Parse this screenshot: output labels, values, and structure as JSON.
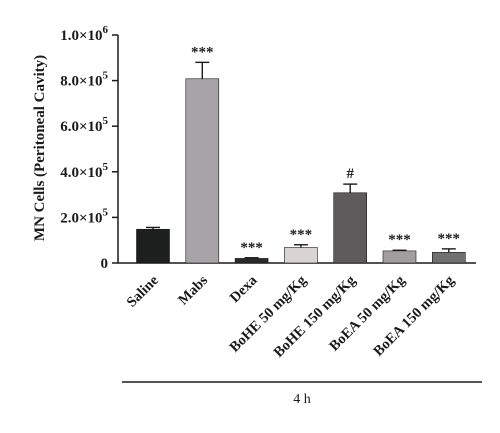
{
  "chart_data": {
    "type": "bar",
    "title": "",
    "xlabel": "",
    "ylabel": "MN Cells (Peritoneal Cavity)",
    "ylim": [
      0,
      1000000
    ],
    "yticks": [
      {
        "value": 0,
        "label": "0"
      },
      {
        "value": 200000,
        "label": "2.0×10",
        "exp": "5"
      },
      {
        "value": 400000,
        "label": "4.0×10",
        "exp": "5"
      },
      {
        "value": 600000,
        "label": "6.0×10",
        "exp": "5"
      },
      {
        "value": 800000,
        "label": "8.0×10",
        "exp": "5"
      },
      {
        "value": 1000000,
        "label": "1.0×10",
        "exp": "6"
      }
    ],
    "categories": [
      "Saline",
      "Mabs",
      "Dexa",
      "BoHE 50 mg/Kg",
      "BoHE 150 mg/Kg",
      "BoEA 50 mg/Kg",
      "BoEA 150 mg/Kg"
    ],
    "values": [
      148000,
      808000,
      20000,
      68000,
      308000,
      53000,
      47000
    ],
    "errors": [
      8000,
      72000,
      3000,
      12000,
      38000,
      3000,
      15000
    ],
    "significance": [
      "",
      "***",
      "***",
      "***",
      "#",
      "***",
      "***"
    ],
    "bar_colors": [
      "#1c1f1d",
      "#a7a3a6",
      "#2a2a2a",
      "#d9d4d3",
      "#5f5a5c",
      "#a29e9f",
      "#707070"
    ],
    "group_label": "4 h"
  }
}
